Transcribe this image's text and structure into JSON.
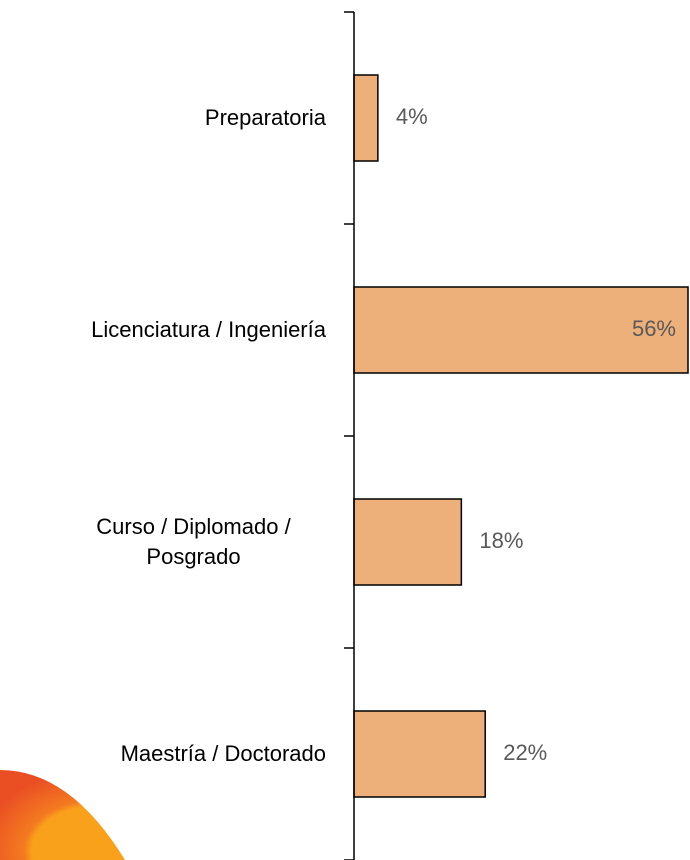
{
  "chart_data": {
    "type": "hbar",
    "categories": [
      "Preparatoria",
      "Licenciatura / Ingeniería",
      "Curso / Diplomado / Posgrado",
      "Maestría / Doctorado"
    ],
    "values": [
      4,
      56,
      18,
      22
    ],
    "value_labels": [
      "4%",
      "56%",
      "18%",
      "22%"
    ],
    "color": "#edb07a",
    "xlim": [
      0,
      56
    ]
  }
}
